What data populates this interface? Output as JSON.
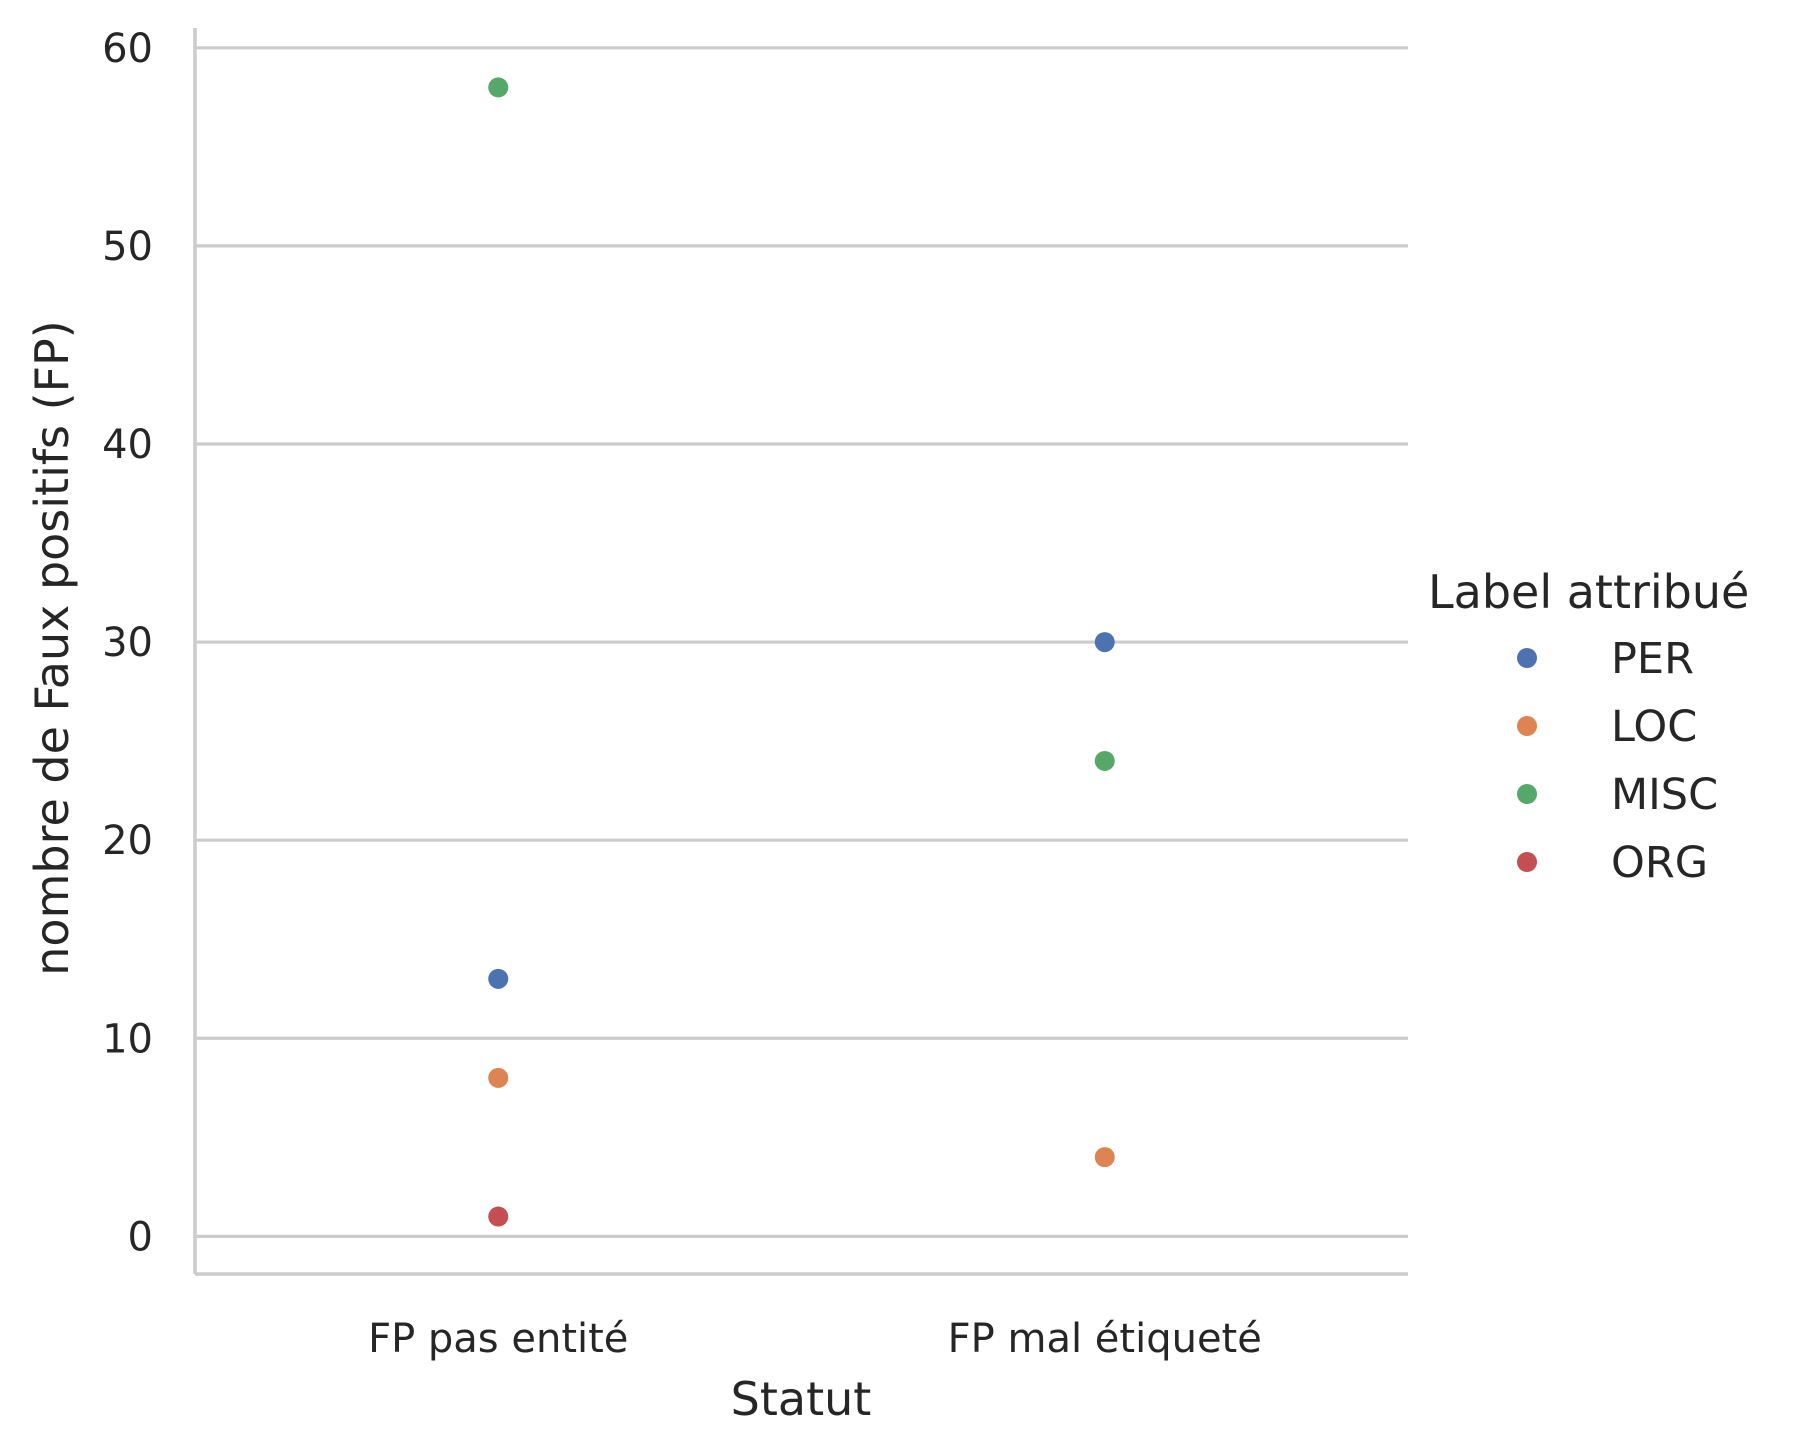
{
  "chart_data": {
    "type": "scatter",
    "title": "",
    "xlabel": "Statut",
    "ylabel": "nombre de Faux positifs (FP)",
    "categories": [
      "FP pas entité",
      "FP mal étiqueté"
    ],
    "ylim": [
      -1.9,
      61
    ],
    "yticks": [
      0,
      10,
      20,
      30,
      40,
      50,
      60
    ],
    "grid": "horizontal",
    "legend": {
      "title": "Label attribué",
      "placement": "right"
    },
    "series": [
      {
        "name": "PER",
        "color": "#4c72b0",
        "values": [
          13,
          30
        ]
      },
      {
        "name": "LOC",
        "color": "#dd8452",
        "values": [
          8,
          4
        ]
      },
      {
        "name": "MISC",
        "color": "#55a868",
        "values": [
          58,
          24
        ]
      },
      {
        "name": "ORG",
        "color": "#c44e52",
        "values": [
          1,
          null
        ]
      }
    ]
  }
}
